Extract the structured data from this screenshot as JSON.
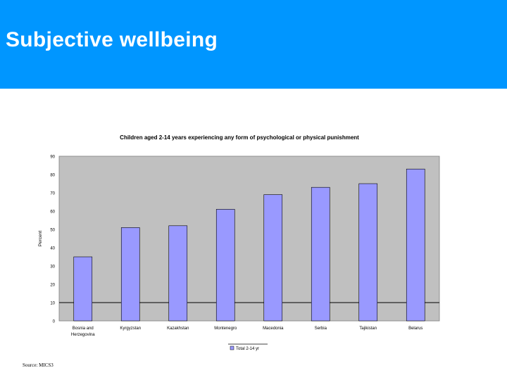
{
  "slide": {
    "title": "Subjective wellbeing",
    "source": "Source: MICS3"
  },
  "colors": {
    "header": "#0096ff",
    "plot_bg": "#c0c0c0",
    "bar": "#9999ff"
  },
  "chart_data": {
    "type": "bar",
    "title": "Children aged 2-14 years experiencing any form of psychological or physical punishment",
    "xlabel": "",
    "ylabel": "Percent",
    "ylim": [
      0,
      90
    ],
    "yticks": [
      "0",
      "10",
      "20",
      "30",
      "40",
      "50",
      "60",
      "70",
      "80",
      "90"
    ],
    "categories": [
      [
        "Bosnia and",
        "Herzegovina"
      ],
      [
        "Kyrgyzstan"
      ],
      [
        "Kazakhstan"
      ],
      [
        "Montenegro"
      ],
      [
        "Macedonia"
      ],
      [
        "Serbia"
      ],
      [
        "Tajikistan"
      ],
      [
        "Belarus"
      ]
    ],
    "series": [
      {
        "name": "Total 2-14 yr",
        "values": [
          35,
          51,
          52,
          61,
          69,
          73,
          75,
          83
        ]
      }
    ],
    "grid": false,
    "legend": "bottom"
  }
}
